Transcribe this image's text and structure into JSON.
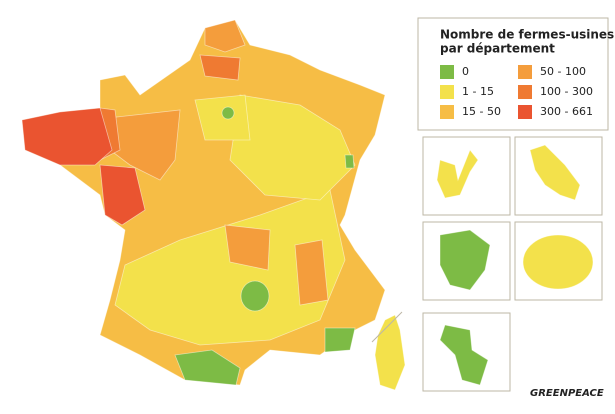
{
  "legend": {
    "title": [
      "Nombre de fermes-usines",
      "par département"
    ],
    "items": [
      {
        "label": "0",
        "color": "#7dbb45"
      },
      {
        "label": "1 - 15",
        "color": "#f3e14b"
      },
      {
        "label": "15 - 50",
        "color": "#f6bd45"
      },
      {
        "label": "50 - 100",
        "color": "#f49d3c"
      },
      {
        "label": "100 - 300",
        "color": "#ef7a32"
      },
      {
        "label": "300 - 661",
        "color": "#ea5430"
      }
    ]
  },
  "logo": "GREENPEACE"
}
